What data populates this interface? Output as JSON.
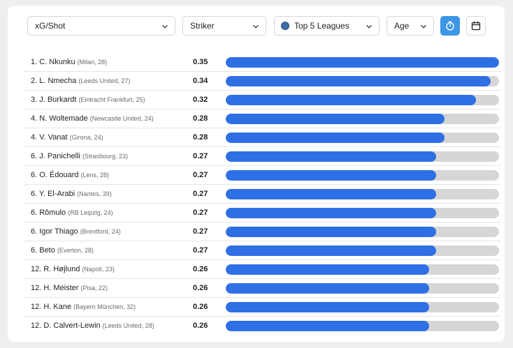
{
  "filters": {
    "metric": "xG/Shot",
    "position": "Striker",
    "league": "Top 5 Leagues",
    "age": "Age"
  },
  "accent_color": "#2f6fe4",
  "icons": {
    "timer": "stopwatch-icon",
    "calendar": "calendar-icon",
    "dropdown": "chevron-down-icon"
  },
  "players": [
    {
      "name": "1. C. Nkunku",
      "info": "(Milan, 28)",
      "value": "0.35",
      "fill": 1.0
    },
    {
      "name": "2. L. Nmecha",
      "info": "(Leeds United, 27)",
      "value": "0.34",
      "fill": 0.97
    },
    {
      "name": "3. J. Burkardt",
      "info": "(Eintracht Frankfurt, 25)",
      "value": "0.32",
      "fill": 0.915
    },
    {
      "name": "4. N. Woltemade",
      "info": "(Newcastle United, 24)",
      "value": "0.28",
      "fill": 0.8
    },
    {
      "name": "4. V. Vanat",
      "info": "(Girona, 24)",
      "value": "0.28",
      "fill": 0.8
    },
    {
      "name": "6. J. Panichelli",
      "info": "(Strasbourg, 23)",
      "value": "0.27",
      "fill": 0.77
    },
    {
      "name": "6. O. Édouard",
      "info": "(Lens, 28)",
      "value": "0.27",
      "fill": 0.77
    },
    {
      "name": "6. Y. El-Arabi",
      "info": "(Nantes, 39)",
      "value": "0.27",
      "fill": 0.77
    },
    {
      "name": "6. Rômulo",
      "info": "(RB Leipzig, 24)",
      "value": "0.27",
      "fill": 0.77
    },
    {
      "name": "6. Igor Thiago",
      "info": "(Brentford, 24)",
      "value": "0.27",
      "fill": 0.77
    },
    {
      "name": "6. Beto",
      "info": "(Everton, 28)",
      "value": "0.27",
      "fill": 0.77
    },
    {
      "name": "12. R. Højlund",
      "info": "(Napoli, 23)",
      "value": "0.26",
      "fill": 0.743
    },
    {
      "name": "12. H. Meister",
      "info": "(Pisa, 22)",
      "value": "0.26",
      "fill": 0.743
    },
    {
      "name": "12. H. Kane",
      "info": "(Bayern München, 32)",
      "value": "0.26",
      "fill": 0.743
    },
    {
      "name": "12. D. Calvert-Lewin",
      "info": "(Leeds United, 28)",
      "value": "0.26",
      "fill": 0.743
    }
  ]
}
